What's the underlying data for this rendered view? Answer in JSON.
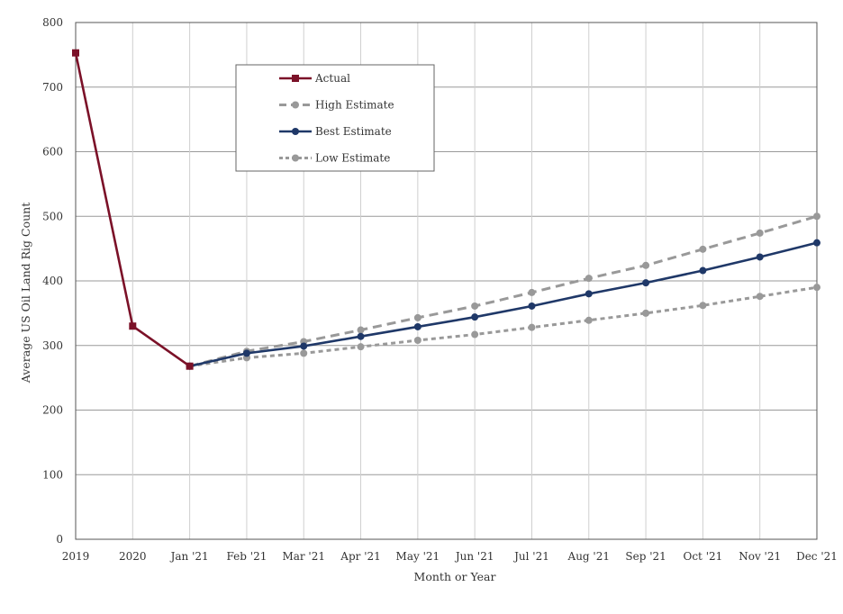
{
  "chart_data": {
    "type": "line",
    "title": "",
    "xlabel": "Month or Year",
    "ylabel": "Average US Oil Land Rig Count",
    "categories": [
      "2019",
      "2020",
      "Jan '21",
      "Feb '21",
      "Mar '21",
      "Apr '21",
      "May '21",
      "Jun '21",
      "Jul '21",
      "Aug '21",
      "Sep '21",
      "Oct '21",
      "Nov '21",
      "Dec '21"
    ],
    "ylim": [
      0,
      800
    ],
    "yticks": [
      0,
      100,
      200,
      300,
      400,
      500,
      600,
      700,
      800
    ],
    "grid": true,
    "legend_position": "top-left",
    "series": [
      {
        "name": "Actual",
        "color": "#7B1128",
        "style": "solid",
        "marker": "square",
        "values": [
          753,
          330,
          268,
          null,
          null,
          null,
          null,
          null,
          null,
          null,
          null,
          null,
          null,
          null
        ]
      },
      {
        "name": "High Estimate",
        "color": "#999999",
        "style": "dashed",
        "marker": "circle",
        "values": [
          null,
          null,
          268,
          291,
          306,
          324,
          343,
          361,
          382,
          404,
          424,
          449,
          474,
          500
        ]
      },
      {
        "name": "Best Estimate",
        "color": "#1F3868",
        "style": "solid",
        "marker": "circle",
        "values": [
          null,
          null,
          268,
          288,
          299,
          314,
          329,
          344,
          361,
          380,
          397,
          416,
          437,
          459
        ]
      },
      {
        "name": "Low Estimate",
        "color": "#999999",
        "style": "dotted",
        "marker": "circle",
        "values": [
          null,
          null,
          268,
          281,
          288,
          298,
          308,
          317,
          328,
          339,
          350,
          362,
          376,
          390
        ]
      }
    ]
  }
}
